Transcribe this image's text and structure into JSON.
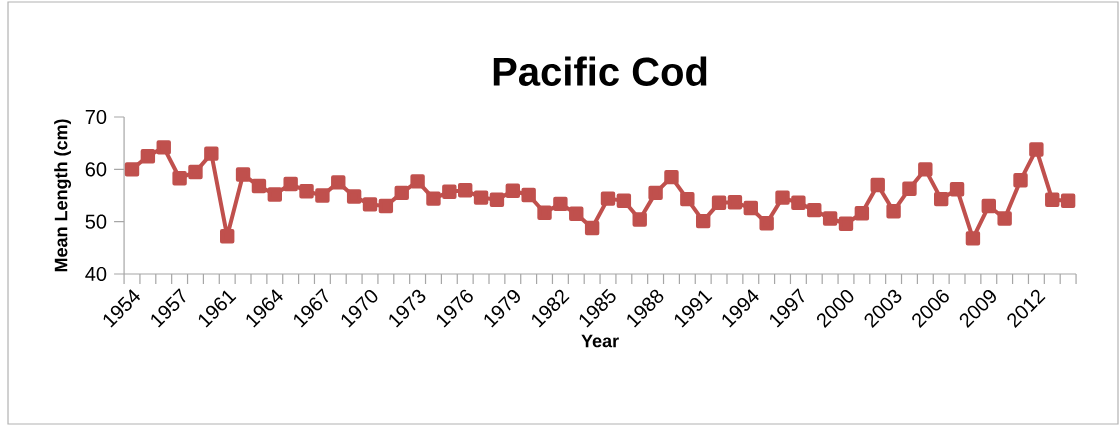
{
  "chart_data": {
    "type": "line",
    "title": "Pacific Cod",
    "xlabel": "Year",
    "ylabel": "Mean Length (cm)",
    "categories": [
      "1954",
      null,
      null,
      "1957",
      null,
      null,
      "1961",
      null,
      null,
      "1964",
      null,
      null,
      "1967",
      null,
      null,
      "1970",
      null,
      null,
      "1973",
      null,
      null,
      "1976",
      null,
      null,
      "1979",
      null,
      null,
      "1982",
      null,
      null,
      "1985",
      null,
      null,
      "1988",
      null,
      null,
      "1991",
      null,
      null,
      "1994",
      null,
      null,
      "1997",
      null,
      null,
      "2000",
      null,
      null,
      "2003",
      null,
      null,
      "2006",
      null,
      null,
      "2009",
      null,
      null,
      "2012",
      null,
      null
    ],
    "series": [
      {
        "color": "#c0504d",
        "values": [
          60,
          62.5,
          64.2,
          58.3,
          59.5,
          63,
          47.2,
          59,
          56.8,
          55.2,
          57.2,
          55.8,
          55,
          57.5,
          54.8,
          53.3,
          53,
          55.5,
          57.7,
          54.4,
          55.7,
          56,
          54.6,
          54.2,
          55.9,
          55.1,
          51.7,
          53.4,
          51.5,
          48.8,
          54.4,
          54,
          50.4,
          55.5,
          58.5,
          54.3,
          50.1,
          53.6,
          53.7,
          52.6,
          49.7,
          54.6,
          53.6,
          52.2,
          50.6,
          49.6,
          51.6,
          57,
          52,
          56.3,
          60,
          54.3,
          56.2,
          46.8,
          53,
          50.6,
          57.9,
          63.8,
          54.2,
          54
        ]
      }
    ],
    "ylim": [
      40,
      70
    ],
    "yticks": [
      40,
      50,
      60,
      70
    ],
    "marker": "square",
    "line_style": "solid"
  }
}
